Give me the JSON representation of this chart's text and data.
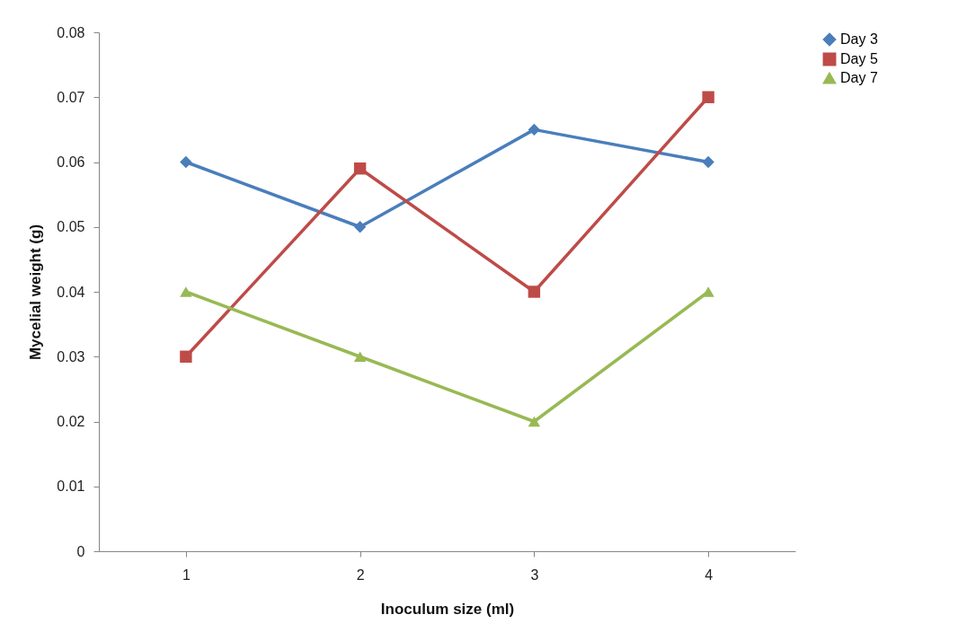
{
  "chart_data": {
    "type": "line",
    "xlabel": "Inoculum size (ml)",
    "ylabel": "Mycelial weight (g)",
    "categories": [
      "1",
      "2",
      "3",
      "4"
    ],
    "series": [
      {
        "name": "Day 3",
        "color": "#4a7ebb",
        "marker": "diamond",
        "values": [
          0.06,
          0.05,
          0.065,
          0.06
        ]
      },
      {
        "name": "Day 5",
        "color": "#be4b48",
        "marker": "square",
        "values": [
          0.03,
          0.059,
          0.04,
          0.07
        ]
      },
      {
        "name": "Day 7",
        "color": "#98b954",
        "marker": "triangle",
        "values": [
          0.04,
          0.03,
          0.02,
          0.04
        ]
      }
    ],
    "ylim": [
      0,
      0.08
    ],
    "yticks": [
      0,
      0.01,
      0.02,
      0.03,
      0.04,
      0.05,
      0.06,
      0.07,
      0.08
    ],
    "legend": "right",
    "grid": false
  }
}
